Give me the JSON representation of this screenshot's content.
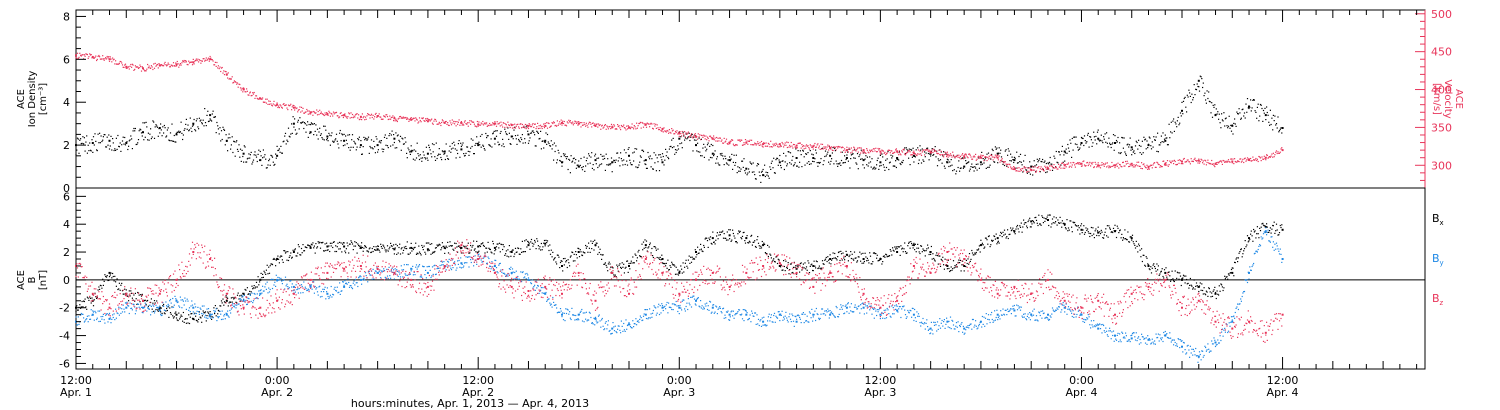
{
  "colors": {
    "bx": "#000000",
    "by": "#1e88e5",
    "bz": "#e8355a",
    "density": "#000000",
    "velocity": "#e8355a"
  },
  "chart_data": [
    {
      "type": "scatter",
      "panel": "top",
      "ylabel": [
        "ACE",
        "Ion Density",
        "[cm⁻³]"
      ],
      "y2label": [
        "ACE",
        "Velocity",
        "[km/s]"
      ],
      "ylim": [
        0,
        8.3
      ],
      "y2lim": [
        270,
        505
      ],
      "yticks": [
        "0",
        "2",
        "4",
        "6",
        "8"
      ],
      "y2ticks": [
        "300",
        "350",
        "400",
        "450",
        "500"
      ],
      "series": [
        {
          "key": "density",
          "axis": "left",
          "x": [
            0,
            1,
            2,
            3,
            4,
            5,
            6,
            7,
            8,
            9,
            10,
            11,
            12,
            13,
            14,
            15,
            16,
            17,
            18,
            19,
            20,
            21,
            22,
            23,
            24,
            25,
            26,
            27,
            28,
            29,
            30,
            31,
            32,
            33,
            34,
            35,
            36,
            37,
            38,
            39,
            40,
            41,
            42,
            43,
            44,
            45,
            46,
            47,
            48,
            49,
            50,
            51,
            52,
            53,
            54,
            55,
            56,
            57,
            58,
            59,
            60,
            61,
            62,
            63,
            64,
            65,
            66,
            67,
            68,
            69,
            70,
            71,
            72
          ],
          "values": [
            2.0,
            2.1,
            2.2,
            2.1,
            2.6,
            2.8,
            2.5,
            3.0,
            3.4,
            2.2,
            1.6,
            1.3,
            1.5,
            3.0,
            2.6,
            2.4,
            2.2,
            2.0,
            2.0,
            2.3,
            1.7,
            1.6,
            1.7,
            1.8,
            2.0,
            2.3,
            2.4,
            2.5,
            2.2,
            1.2,
            1.0,
            1.3,
            1.2,
            1.5,
            1.3,
            1.2,
            2.3,
            2.0,
            1.6,
            1.3,
            0.9,
            0.6,
            1.2,
            1.4,
            1.4,
            1.5,
            1.4,
            1.3,
            1.2,
            1.4,
            1.5,
            1.6,
            1.2,
            1.0,
            1.2,
            1.6,
            1.3,
            1.0,
            0.9,
            1.7,
            2.1,
            2.3,
            2.1,
            1.9,
            2.0,
            2.2,
            3.6,
            5.0,
            3.4,
            2.9,
            3.8,
            3.4,
            2.8
          ]
        },
        {
          "key": "velocity",
          "axis": "right",
          "x": [
            0,
            1,
            2,
            3,
            4,
            5,
            6,
            7,
            8,
            9,
            10,
            11,
            12,
            13,
            14,
            15,
            16,
            17,
            18,
            19,
            20,
            21,
            22,
            23,
            24,
            25,
            26,
            27,
            28,
            29,
            30,
            31,
            32,
            33,
            34,
            35,
            36,
            37,
            38,
            39,
            40,
            41,
            42,
            43,
            44,
            45,
            46,
            47,
            48,
            49,
            50,
            51,
            52,
            53,
            54,
            55,
            56,
            57,
            58,
            59,
            60,
            61,
            62,
            63,
            64,
            65,
            66,
            67,
            68,
            69,
            70,
            71,
            72
          ],
          "values": [
            445,
            443,
            440,
            430,
            428,
            432,
            433,
            436,
            440,
            420,
            400,
            388,
            380,
            376,
            370,
            368,
            366,
            364,
            365,
            362,
            360,
            358,
            356,
            356,
            354,
            355,
            353,
            352,
            352,
            356,
            355,
            352,
            350,
            350,
            354,
            348,
            342,
            338,
            335,
            330,
            330,
            328,
            328,
            326,
            325,
            323,
            320,
            320,
            318,
            318,
            316,
            318,
            314,
            312,
            310,
            310,
            295,
            294,
            296,
            300,
            302,
            300,
            300,
            302,
            298,
            302,
            305,
            306,
            302,
            305,
            307,
            310,
            320
          ]
        }
      ]
    },
    {
      "type": "scatter",
      "panel": "bottom",
      "ylabel": [
        "ACE",
        "B",
        "[nT]"
      ],
      "ylim": [
        -6.4,
        6.6
      ],
      "yticks": [
        "-6",
        "-4",
        "-2",
        "0",
        "2",
        "4",
        "6"
      ],
      "xticks": [
        {
          "x": 0,
          "time": "12:00",
          "date": "Apr. 1"
        },
        {
          "x": 12,
          "time": "0:00",
          "date": "Apr. 2"
        },
        {
          "x": 24,
          "time": "12:00",
          "date": "Apr. 2"
        },
        {
          "x": 36,
          "time": "0:00",
          "date": "Apr. 3"
        },
        {
          "x": 48,
          "time": "12:00",
          "date": "Apr. 3"
        },
        {
          "x": 60,
          "time": "0:00",
          "date": "Apr. 4"
        },
        {
          "x": 72,
          "time": "12:00",
          "date": "Apr. 4"
        }
      ],
      "xlim": [
        0,
        80.5
      ],
      "xlabel": "hours:minutes, Apr.  1, 2013 — Apr.  4, 2013",
      "legend": [
        {
          "key": "bx",
          "label": "B",
          "sub": "x"
        },
        {
          "key": "by",
          "label": "B",
          "sub": "y"
        },
        {
          "key": "bz",
          "label": "B",
          "sub": "z"
        }
      ],
      "series": [
        {
          "key": "bx",
          "x": [
            0,
            1,
            2,
            3,
            4,
            5,
            6,
            7,
            8,
            9,
            10,
            11,
            12,
            13,
            14,
            15,
            16,
            17,
            18,
            19,
            20,
            21,
            22,
            23,
            24,
            25,
            26,
            27,
            28,
            29,
            30,
            31,
            32,
            33,
            34,
            35,
            36,
            37,
            38,
            39,
            40,
            41,
            42,
            43,
            44,
            45,
            46,
            47,
            48,
            49,
            50,
            51,
            52,
            53,
            54,
            55,
            56,
            57,
            58,
            59,
            60,
            61,
            62,
            63,
            64,
            65,
            66,
            67,
            68,
            69,
            70,
            71,
            72
          ],
          "values": [
            -2.0,
            -1.5,
            0.5,
            -1.0,
            -1.5,
            -2.0,
            -2.5,
            -2.8,
            -2.5,
            -1.5,
            -1.0,
            0.0,
            1.5,
            2.0,
            2.3,
            2.4,
            2.4,
            2.3,
            2.2,
            2.2,
            2.3,
            2.2,
            2.3,
            2.3,
            2.4,
            2.3,
            2.0,
            2.5,
            2.6,
            1.0,
            2.0,
            2.5,
            0.5,
            1.0,
            2.5,
            1.5,
            0.5,
            2.0,
            3.0,
            3.2,
            3.0,
            2.5,
            1.0,
            0.8,
            1.0,
            1.5,
            1.8,
            1.5,
            1.5,
            2.0,
            2.5,
            2.0,
            1.0,
            1.0,
            2.5,
            3.0,
            3.5,
            4.2,
            4.3,
            4.0,
            3.6,
            3.4,
            3.5,
            3.0,
            1.0,
            0.5,
            0.0,
            -0.5,
            -1.0,
            0.5,
            3.0,
            3.8,
            3.6
          ]
        },
        {
          "key": "by",
          "x": [
            0,
            1,
            2,
            3,
            4,
            5,
            6,
            7,
            8,
            9,
            10,
            11,
            12,
            13,
            14,
            15,
            16,
            17,
            18,
            19,
            20,
            21,
            22,
            23,
            24,
            25,
            26,
            27,
            28,
            29,
            30,
            31,
            32,
            33,
            34,
            35,
            36,
            37,
            38,
            39,
            40,
            41,
            42,
            43,
            44,
            45,
            46,
            47,
            48,
            49,
            50,
            51,
            52,
            53,
            54,
            55,
            56,
            57,
            58,
            59,
            60,
            61,
            62,
            63,
            64,
            65,
            66,
            67,
            68,
            69,
            70,
            71,
            72
          ],
          "values": [
            -3.0,
            -2.5,
            -2.8,
            -2.0,
            -2.0,
            -2.2,
            -1.5,
            -2.0,
            -2.5,
            -2.5,
            -1.5,
            -1.0,
            0.0,
            -0.5,
            -0.5,
            -1.0,
            -0.5,
            0.0,
            0.5,
            0.5,
            0.8,
            0.5,
            1.0,
            1.2,
            1.5,
            1.0,
            0.5,
            0.0,
            -1.0,
            -2.5,
            -2.5,
            -2.8,
            -3.5,
            -3.2,
            -2.5,
            -2.0,
            -2.0,
            -1.5,
            -2.0,
            -2.5,
            -2.5,
            -3.0,
            -2.5,
            -3.0,
            -2.5,
            -2.5,
            -2.0,
            -2.0,
            -2.5,
            -2.2,
            -2.5,
            -3.5,
            -3.0,
            -3.5,
            -3.0,
            -2.5,
            -2.2,
            -2.5,
            -2.5,
            -2.0,
            -2.5,
            -3.5,
            -4.0,
            -4.2,
            -4.3,
            -4.0,
            -4.8,
            -5.5,
            -4.5,
            -3.0,
            0.5,
            3.5,
            1.5
          ]
        },
        {
          "key": "bz",
          "x": [
            0,
            1,
            2,
            3,
            4,
            5,
            6,
            7,
            8,
            9,
            10,
            11,
            12,
            13,
            14,
            15,
            16,
            17,
            18,
            19,
            20,
            21,
            22,
            23,
            24,
            25,
            26,
            27,
            28,
            29,
            30,
            31,
            32,
            33,
            34,
            35,
            36,
            37,
            38,
            39,
            40,
            41,
            42,
            43,
            44,
            45,
            46,
            47,
            48,
            49,
            50,
            51,
            52,
            53,
            54,
            55,
            56,
            57,
            58,
            59,
            60,
            61,
            62,
            63,
            64,
            65,
            66,
            67,
            68,
            69,
            70,
            71,
            72
          ],
          "values": [
            1.0,
            -1.0,
            -2.0,
            -1.0,
            -1.5,
            -1.0,
            0.0,
            2.0,
            1.5,
            -1.0,
            -2.0,
            -2.0,
            -1.5,
            -1.0,
            0.0,
            0.5,
            0.8,
            1.0,
            0.8,
            0.5,
            0.0,
            -0.5,
            1.0,
            2.5,
            1.5,
            0.5,
            -0.5,
            -0.8,
            -0.5,
            -1.0,
            0.5,
            -1.5,
            0.5,
            -1.0,
            1.5,
            0.5,
            -1.0,
            0.0,
            0.5,
            -0.5,
            0.5,
            1.0,
            1.2,
            0.5,
            -0.5,
            0.5,
            1.0,
            -1.0,
            -2.0,
            -1.5,
            1.0,
            0.5,
            2.0,
            1.5,
            0.0,
            -1.0,
            -0.5,
            -1.0,
            0.0,
            -1.5,
            -2.0,
            -1.5,
            -2.5,
            -1.0,
            -0.5,
            0.0,
            -2.0,
            -1.5,
            -3.0,
            -3.5,
            -3.0,
            -3.8,
            -2.5
          ]
        }
      ]
    }
  ]
}
